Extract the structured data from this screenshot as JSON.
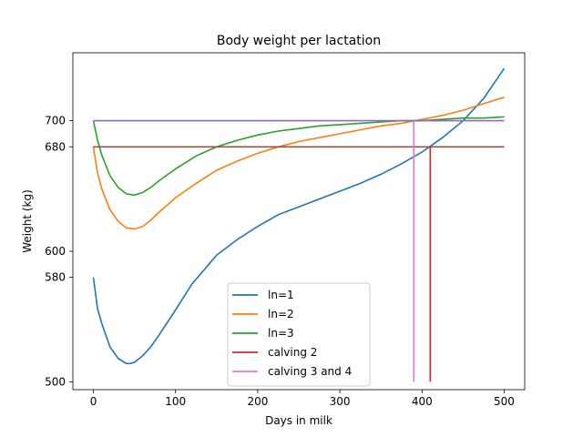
{
  "chart_data": {
    "type": "line",
    "title": "Body weight per lactation",
    "xlabel": "Days in milk",
    "ylabel": "Weight (kg)",
    "xlim": [
      -25,
      525
    ],
    "ylim": [
      494,
      752
    ],
    "xticks": [
      0,
      100,
      200,
      300,
      400,
      500
    ],
    "yticks": [
      500,
      580,
      600,
      680,
      700
    ],
    "grid": false,
    "legend_position": "lower center",
    "series": [
      {
        "name": "ln=1",
        "color": "#1f77b4",
        "x": [
          0,
          5,
          10,
          20,
          30,
          40,
          45,
          50,
          60,
          70,
          80,
          100,
          120,
          150,
          175,
          200,
          225,
          250,
          275,
          300,
          325,
          350,
          375,
          400,
          425,
          450,
          475,
          500
        ],
        "y": [
          580,
          556,
          545,
          527,
          518,
          514,
          514,
          515,
          520,
          527,
          536,
          555,
          575,
          597,
          609,
          619,
          628,
          634,
          640,
          646,
          652,
          659,
          667,
          676,
          687,
          700,
          717,
          740
        ]
      },
      {
        "name": "ln=2",
        "color": "#ff7f0e",
        "x": [
          0,
          5,
          10,
          20,
          30,
          40,
          50,
          60,
          70,
          80,
          100,
          125,
          150,
          175,
          200,
          225,
          250,
          275,
          300,
          325,
          350,
          375,
          400,
          425,
          450,
          475,
          500
        ],
        "y": [
          680,
          660,
          648,
          632,
          623,
          618,
          617,
          619,
          624,
          630,
          641,
          652,
          662,
          669,
          675,
          680,
          684,
          687,
          690,
          693,
          696,
          698,
          701,
          704,
          708,
          713,
          718
        ]
      },
      {
        "name": "ln=3",
        "color": "#2ca02c",
        "x": [
          0,
          5,
          10,
          20,
          30,
          40,
          50,
          60,
          70,
          80,
          100,
          125,
          150,
          175,
          200,
          225,
          250,
          275,
          300,
          325,
          350,
          375,
          400,
          425,
          450,
          475,
          500
        ],
        "y": [
          700,
          685,
          674,
          658,
          649,
          644,
          643,
          645,
          649,
          654,
          663,
          673,
          680,
          685,
          689,
          692,
          694,
          696,
          697,
          698,
          699,
          700,
          700,
          701,
          702,
          702,
          703
        ]
      },
      {
        "name": "calving 2",
        "color": "#d62728",
        "segments": [
          {
            "x": [
              410,
              410
            ],
            "y": [
              500,
              680
            ]
          }
        ]
      },
      {
        "name": "calving 3 and 4",
        "color": "#e377c2",
        "segments": [
          {
            "x": [
              390,
              390
            ],
            "y": [
              500,
              700
            ]
          }
        ]
      }
    ],
    "reference_lines": [
      {
        "color": "#8c564b",
        "x": [
          0,
          500
        ],
        "y": [
          680,
          680
        ]
      },
      {
        "color": "#9467bd",
        "x": [
          0,
          500
        ],
        "y": [
          700,
          700
        ]
      }
    ]
  }
}
